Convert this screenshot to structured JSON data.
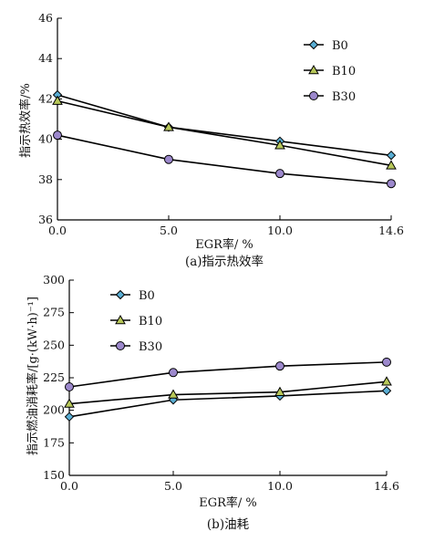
{
  "colors": {
    "B0": "#5aaed4",
    "B10": "#b8c85a",
    "B30": "#9c88cc",
    "line": "#000000"
  },
  "chart_data": [
    {
      "type": "line",
      "caption": "(a)指示热效率",
      "xlabel": "EGR率/ %",
      "ylabel": "指示热效率/%",
      "x_ticks": [
        "0.0",
        "5.0",
        "10.0",
        "14.6"
      ],
      "y_ticks": [
        "36",
        "38",
        "40",
        "42",
        "44",
        "46"
      ],
      "x": [
        0.0,
        5.0,
        10.0,
        14.6
      ],
      "ylim": [
        36,
        46
      ],
      "xlim": [
        0.0,
        14.6
      ],
      "legend_position": "top-right",
      "series": [
        {
          "name": "B0",
          "marker": "diamond",
          "values": [
            42.2,
            40.6,
            39.9,
            39.2
          ]
        },
        {
          "name": "B10",
          "marker": "triangle",
          "values": [
            41.9,
            40.6,
            39.7,
            38.7
          ]
        },
        {
          "name": "B30",
          "marker": "circle",
          "values": [
            40.2,
            39.0,
            38.3,
            37.8
          ]
        }
      ]
    },
    {
      "type": "line",
      "caption": "(b)油耗",
      "xlabel": "EGR率/ %",
      "ylabel": "指示燃油消耗率/[g·(kW·h)⁻¹]",
      "x_ticks": [
        "0.0",
        "5.0",
        "10.0",
        "14.6"
      ],
      "y_ticks": [
        "150",
        "175",
        "200",
        "225",
        "250",
        "275",
        "300"
      ],
      "x": [
        0.0,
        5.0,
        10.0,
        14.6
      ],
      "ylim": [
        150,
        300
      ],
      "xlim": [
        0.0,
        14.6
      ],
      "legend_position": "top-left",
      "series": [
        {
          "name": "B0",
          "marker": "diamond",
          "values": [
            195,
            208,
            211,
            215
          ]
        },
        {
          "name": "B10",
          "marker": "triangle",
          "values": [
            205,
            212,
            214,
            222
          ]
        },
        {
          "name": "B30",
          "marker": "circle",
          "values": [
            218,
            229,
            234,
            237
          ]
        }
      ]
    }
  ]
}
